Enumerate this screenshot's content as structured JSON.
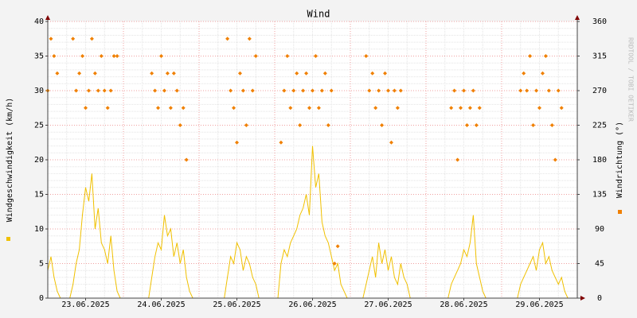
{
  "chart_data": {
    "type": "line",
    "title": "Wind",
    "ylabel": "Windgeschwindigkeit (km/h)",
    "y2label": "Windrichtung (°)",
    "watermark": "RRDTOOL / TOBI OETIKER",
    "xlim": [
      0,
      168
    ],
    "xticks": [
      {
        "value": 12,
        "label": "23.06.2025"
      },
      {
        "value": 36,
        "label": "24.06.2025"
      },
      {
        "value": 60,
        "label": "25.06.2025"
      },
      {
        "value": 84,
        "label": "26.06.2025"
      },
      {
        "value": 108,
        "label": "27.06.2025"
      },
      {
        "value": 132,
        "label": "28.06.2025"
      },
      {
        "value": 156,
        "label": "29.06.2025"
      }
    ],
    "xgrid": [
      24,
      48,
      72,
      96,
      120,
      144
    ],
    "ylim": [
      0,
      40
    ],
    "yticks": [
      0,
      5,
      10,
      15,
      20,
      25,
      30,
      35,
      40
    ],
    "y2lim": [
      0,
      360
    ],
    "y2ticks": [
      0,
      45,
      90,
      135,
      180,
      225,
      270,
      315,
      360
    ],
    "grid": true,
    "x": [
      0,
      1,
      2,
      3,
      4,
      5,
      6,
      7,
      8,
      9,
      10,
      11,
      12,
      13,
      14,
      15,
      16,
      17,
      18,
      19,
      20,
      21,
      22,
      23,
      24,
      25,
      26,
      27,
      28,
      29,
      30,
      31,
      32,
      33,
      34,
      35,
      36,
      37,
      38,
      39,
      40,
      41,
      42,
      43,
      44,
      45,
      46,
      47,
      48,
      49,
      50,
      51,
      52,
      53,
      54,
      55,
      56,
      57,
      58,
      59,
      60,
      61,
      62,
      63,
      64,
      65,
      66,
      67,
      68,
      69,
      70,
      71,
      72,
      73,
      74,
      75,
      76,
      77,
      78,
      79,
      80,
      81,
      82,
      83,
      84,
      85,
      86,
      87,
      88,
      89,
      90,
      91,
      92,
      93,
      94,
      95,
      96,
      97,
      98,
      99,
      100,
      101,
      102,
      103,
      104,
      105,
      106,
      107,
      108,
      109,
      110,
      111,
      112,
      113,
      114,
      115,
      116,
      117,
      118,
      119,
      120,
      121,
      122,
      123,
      124,
      125,
      126,
      127,
      128,
      129,
      130,
      131,
      132,
      133,
      134,
      135,
      136,
      137,
      138,
      139,
      140,
      141,
      142,
      143,
      144,
      145,
      146,
      147,
      148,
      149,
      150,
      151,
      152,
      153,
      154,
      155,
      156,
      157,
      158,
      159,
      160,
      161,
      162,
      163,
      164,
      165,
      166,
      167
    ],
    "series": [
      {
        "color": "#f0c000",
        "values": [
          4,
          6,
          3,
          1,
          0,
          0,
          0,
          0,
          2,
          5,
          7,
          12,
          16,
          14,
          18,
          10,
          13,
          8,
          7,
          5,
          9,
          4,
          1,
          0,
          0,
          0,
          0,
          0,
          0,
          0,
          0,
          0,
          0,
          3,
          6,
          8,
          7,
          12,
          9,
          10,
          6,
          8,
          5,
          7,
          3,
          1,
          0,
          0,
          0,
          0,
          0,
          0,
          0,
          0,
          0,
          0,
          0,
          3,
          6,
          5,
          8,
          7,
          4,
          6,
          5,
          3,
          2,
          0,
          0,
          0,
          0,
          0,
          0,
          0,
          5,
          7,
          6,
          8,
          9,
          10,
          12,
          13,
          15,
          12,
          22,
          16,
          18,
          11,
          9,
          8,
          6,
          4,
          5,
          2,
          1,
          0,
          0,
          0,
          0,
          0,
          0,
          2,
          4,
          6,
          3,
          8,
          5,
          7,
          4,
          6,
          3,
          2,
          5,
          3,
          2,
          0,
          0,
          0,
          0,
          0,
          0,
          0,
          0,
          0,
          0,
          0,
          0,
          0,
          2,
          3,
          4,
          5,
          7,
          6,
          8,
          12,
          5,
          3,
          1,
          0,
          0,
          0,
          0,
          0,
          0,
          0,
          0,
          0,
          0,
          0,
          2,
          3,
          4,
          5,
          6,
          4,
          7,
          8,
          5,
          6,
          4,
          3,
          2,
          3,
          1,
          0,
          0,
          0
        ]
      },
      {
        "type": "scatter",
        "axis": "y2",
        "color": "#f08000",
        "values": [
          270,
          337.5,
          315,
          292.5,
          null,
          null,
          null,
          null,
          337.5,
          270,
          292.5,
          315,
          247.5,
          270,
          337.5,
          292.5,
          270,
          315,
          270,
          247.5,
          270,
          315,
          315,
          null,
          null,
          null,
          null,
          null,
          null,
          null,
          null,
          null,
          null,
          292.5,
          270,
          247.5,
          315,
          270,
          292.5,
          247.5,
          292.5,
          270,
          225,
          247.5,
          180,
          null,
          null,
          null,
          null,
          null,
          null,
          null,
          null,
          null,
          null,
          null,
          null,
          337.5,
          270,
          247.5,
          202.5,
          292.5,
          270,
          225,
          337.5,
          270,
          315,
          null,
          null,
          null,
          null,
          null,
          null,
          null,
          202.5,
          270,
          315,
          247.5,
          270,
          292.5,
          225,
          270,
          292.5,
          247.5,
          270,
          315,
          247.5,
          270,
          292.5,
          225,
          270,
          45,
          67.5,
          null,
          null,
          null,
          null,
          null,
          null,
          null,
          null,
          315,
          270,
          292.5,
          247.5,
          270,
          225,
          292.5,
          270,
          202.5,
          270,
          247.5,
          270,
          null,
          null,
          null,
          null,
          null,
          null,
          null,
          null,
          null,
          null,
          null,
          null,
          null,
          null,
          null,
          247.5,
          270,
          180,
          247.5,
          270,
          225,
          247.5,
          270,
          225,
          247.5,
          null,
          null,
          null,
          null,
          null,
          null,
          null,
          null,
          null,
          null,
          null,
          null,
          270,
          292.5,
          270,
          315,
          225,
          270,
          247.5,
          292.5,
          315,
          270,
          225,
          180,
          270,
          247.5,
          null,
          null,
          null,
          null
        ]
      }
    ]
  }
}
